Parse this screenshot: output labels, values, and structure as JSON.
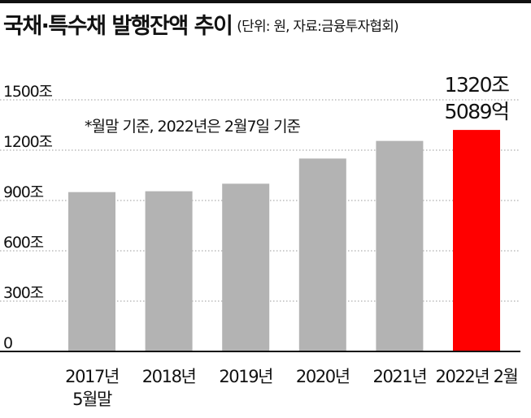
{
  "title": "국채·특수채 발행잔액 추이",
  "unit": "(단위: 원, 자료:금융투자협회)",
  "note": "*월말 기준, 2022년은 2월7일 기준",
  "chart_data": {
    "type": "bar",
    "categories": [
      [
        "2017년",
        "5월말"
      ],
      [
        "2018년"
      ],
      [
        "2019년"
      ],
      [
        "2020년"
      ],
      [
        "2021년"
      ],
      [
        "2022년 2월"
      ]
    ],
    "values": [
      950,
      955,
      1000,
      1150,
      1255,
      1320.5089
    ],
    "ylim": [
      0,
      1500
    ],
    "yticks": [
      0,
      300,
      600,
      900,
      1200,
      1500
    ],
    "ytick_labels": [
      "0",
      "300조",
      "600조",
      "900조",
      "1200조",
      "1500조"
    ],
    "bar_colors": [
      "#b3b3b3",
      "#b3b3b3",
      "#b3b3b3",
      "#b3b3b3",
      "#b3b3b3",
      "#ff0000"
    ],
    "grid": "horizontal",
    "annotation": {
      "target_index": 5,
      "lines": [
        "1320조",
        "5089억"
      ]
    }
  }
}
